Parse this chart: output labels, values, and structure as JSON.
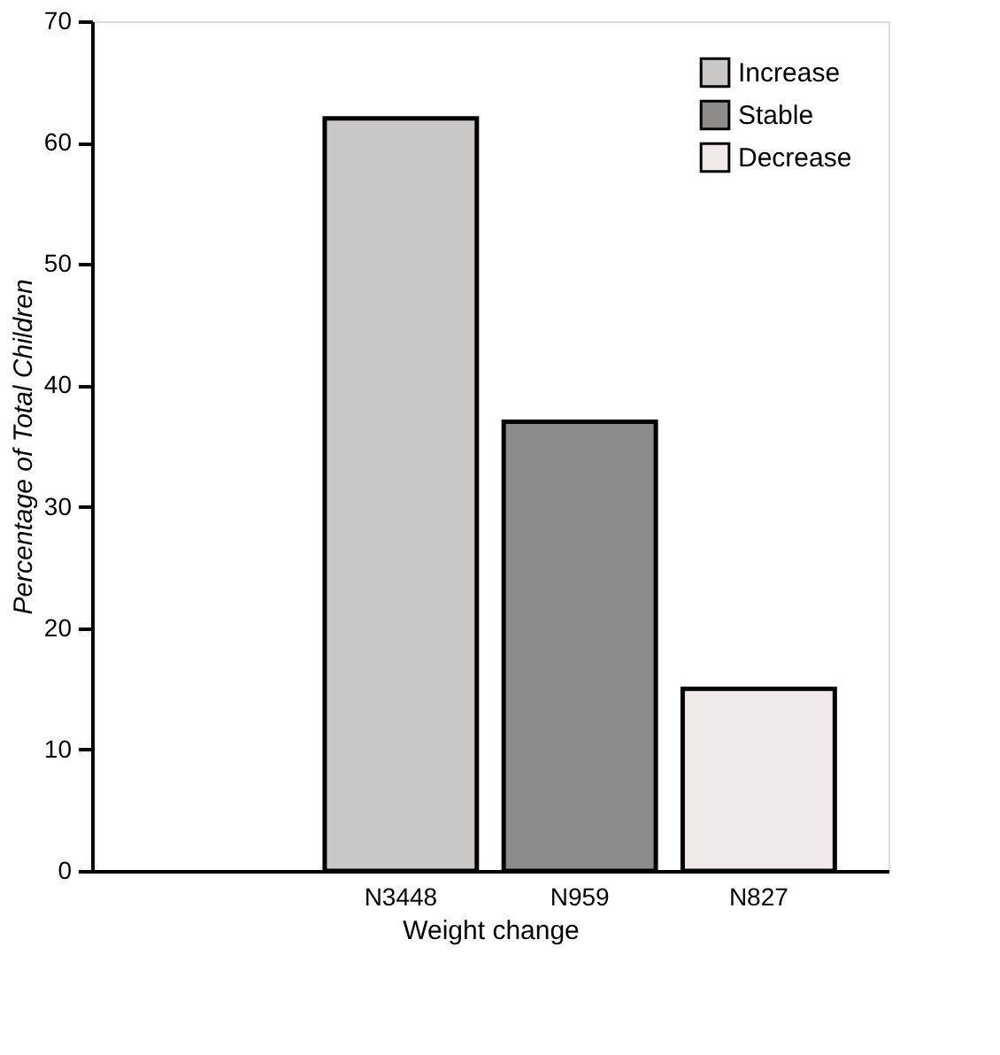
{
  "chart_data": {
    "type": "bar",
    "xlabel": "Weight change",
    "ylabel": "Percentage of Total Children",
    "categories": [
      null,
      "N3448",
      "N959",
      "N827"
    ],
    "series": [
      {
        "name": "Increase",
        "color": "#c9c6c6",
        "values": [
          null,
          62,
          null,
          null
        ]
      },
      {
        "name": "Stable",
        "color": "#8e8b8b",
        "values": [
          null,
          null,
          37,
          null
        ]
      },
      {
        "name": "Decrease",
        "color": "#efeae9",
        "values": [
          null,
          null,
          null,
          15
        ]
      }
    ],
    "ylim": [
      0,
      70
    ],
    "yticks": [
      0,
      10,
      20,
      30,
      40,
      50,
      60,
      70
    ],
    "grid": false,
    "stacked": true,
    "legend": "top right"
  }
}
